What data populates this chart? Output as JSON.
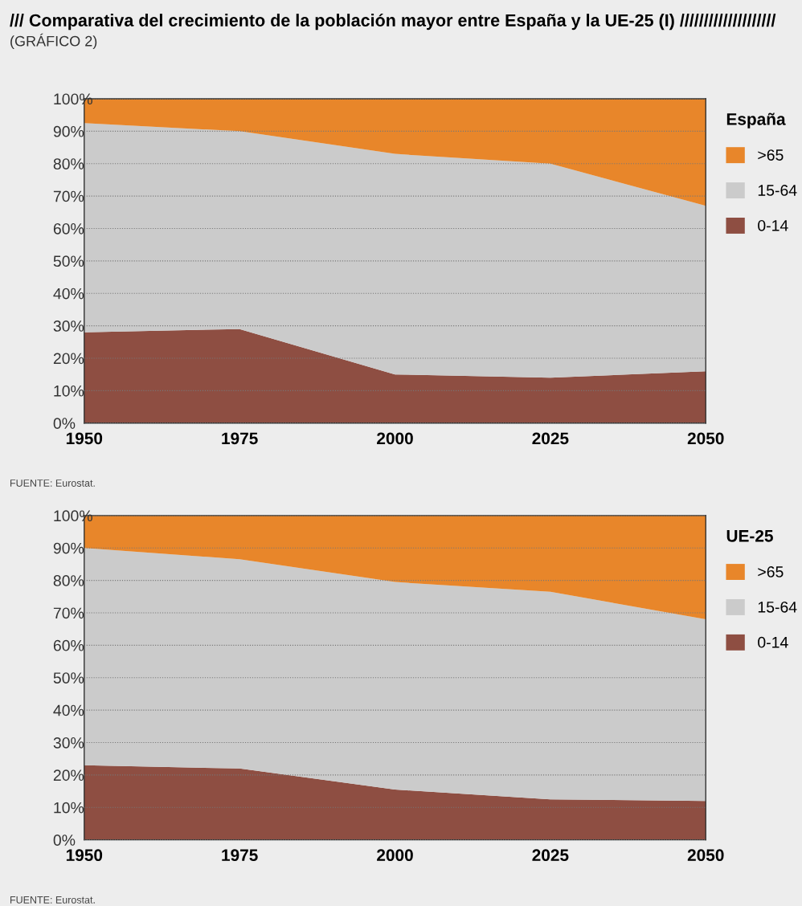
{
  "chart_data": [
    {
      "type": "area",
      "stacked": true,
      "title": "/// Comparativa del crecimiento de la población mayor entre España y la UE-25 (I) ////////////////////",
      "subtitle": "(GRÁFICO 2)",
      "legend_title": "España",
      "legend": "right",
      "grid": "y",
      "x": [
        1950,
        1975,
        2000,
        2025,
        2050
      ],
      "xlim": [
        1950,
        2050
      ],
      "xticks": [
        1950,
        1975,
        2000,
        2025,
        2050
      ],
      "ylim": [
        0,
        100
      ],
      "yticks": [
        {
          "value": 0,
          "label": "0%"
        },
        {
          "value": 10,
          "label": "10%"
        },
        {
          "value": 20,
          "label": "20%"
        },
        {
          "value": 30,
          "label": "30%"
        },
        {
          "value": 40,
          "label": "40%"
        },
        {
          "value": 50,
          "label": "50%"
        },
        {
          "value": 60,
          "label": "60%"
        },
        {
          "value": 70,
          "label": "70%"
        },
        {
          "value": 80,
          "label": "80%"
        },
        {
          "value": 90,
          "label": "90%"
        },
        {
          "value": 100,
          "label": "100%"
        }
      ],
      "series": [
        {
          "name": "0-14",
          "color": "#8e4e42",
          "values": [
            28,
            29,
            15,
            14,
            16
          ]
        },
        {
          "name": "15-64",
          "color": "#cbcbcb",
          "values": [
            64.5,
            61,
            68,
            66,
            51
          ]
        },
        {
          "name": ">65",
          "color": "#e8862a",
          "values": [
            7.5,
            10,
            17,
            20,
            33
          ]
        }
      ],
      "annotations": [
        "FUENTE: Eurostat."
      ]
    },
    {
      "type": "area",
      "stacked": true,
      "legend_title": "UE-25",
      "legend": "right",
      "grid": "y",
      "x": [
        1950,
        1975,
        2000,
        2025,
        2050
      ],
      "xlim": [
        1950,
        2050
      ],
      "xticks": [
        1950,
        1975,
        2000,
        2025,
        2050
      ],
      "ylim": [
        0,
        100
      ],
      "yticks": [
        {
          "value": 0,
          "label": "0%"
        },
        {
          "value": 10,
          "label": "10%"
        },
        {
          "value": 20,
          "label": "20%"
        },
        {
          "value": 30,
          "label": "30%"
        },
        {
          "value": 40,
          "label": "40%"
        },
        {
          "value": 50,
          "label": "50%"
        },
        {
          "value": 60,
          "label": "60%"
        },
        {
          "value": 70,
          "label": "70%"
        },
        {
          "value": 80,
          "label": "80%"
        },
        {
          "value": 90,
          "label": "90%"
        },
        {
          "value": 100,
          "label": "100%"
        }
      ],
      "series": [
        {
          "name": "0-14",
          "color": "#8e4e42",
          "values": [
            23,
            22,
            15.5,
            12.5,
            12
          ]
        },
        {
          "name": "15-64",
          "color": "#cbcbcb",
          "values": [
            67,
            64.5,
            64,
            64,
            56
          ]
        },
        {
          "name": ">65",
          "color": "#e8862a",
          "values": [
            10,
            13.5,
            20.5,
            23.5,
            32
          ]
        }
      ],
      "annotations": [
        "FUENTE: Eurostat."
      ]
    }
  ]
}
